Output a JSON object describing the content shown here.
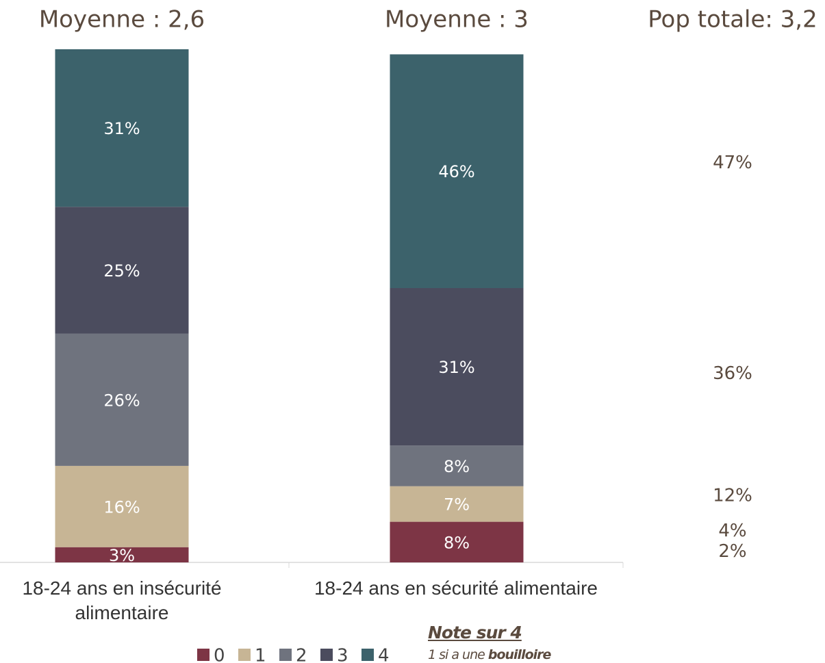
{
  "chart_data": {
    "type": "bar",
    "stacked": true,
    "category_titles": [
      "Moyenne : 2,6",
      "Moyenne : 3"
    ],
    "categories": [
      "18-24 ans en insécurité alimentaire",
      "18-24 ans en sécurité alimentaire"
    ],
    "series": [
      {
        "name": "0",
        "color": "#7d3545",
        "values": [
          3,
          8
        ],
        "value_labels": [
          "3%",
          "8%"
        ]
      },
      {
        "name": "1",
        "color": "#c7b595",
        "values": [
          16,
          7
        ],
        "value_labels": [
          "16%",
          "7%"
        ]
      },
      {
        "name": "2",
        "color": "#6f737e",
        "values": [
          26,
          8
        ],
        "value_labels": [
          "26%",
          "8%"
        ]
      },
      {
        "name": "3",
        "color": "#4b4c5e",
        "values": [
          25,
          31
        ],
        "value_labels": [
          "25%",
          "31%"
        ]
      },
      {
        "name": "4",
        "color": "#3c626b",
        "values": [
          31,
          46
        ],
        "value_labels": [
          "31%",
          "46%"
        ]
      }
    ],
    "pop_totale": {
      "title": "Pop totale: 3,2",
      "values": [
        2,
        4,
        12,
        36,
        47
      ],
      "value_labels": [
        "2%",
        "4%",
        "12%",
        "36%",
        "47%"
      ]
    },
    "ylim": [
      0,
      101
    ],
    "note": {
      "title": "Note sur 4",
      "text": "1 si a une",
      "emphasis": "bouilloire"
    }
  }
}
